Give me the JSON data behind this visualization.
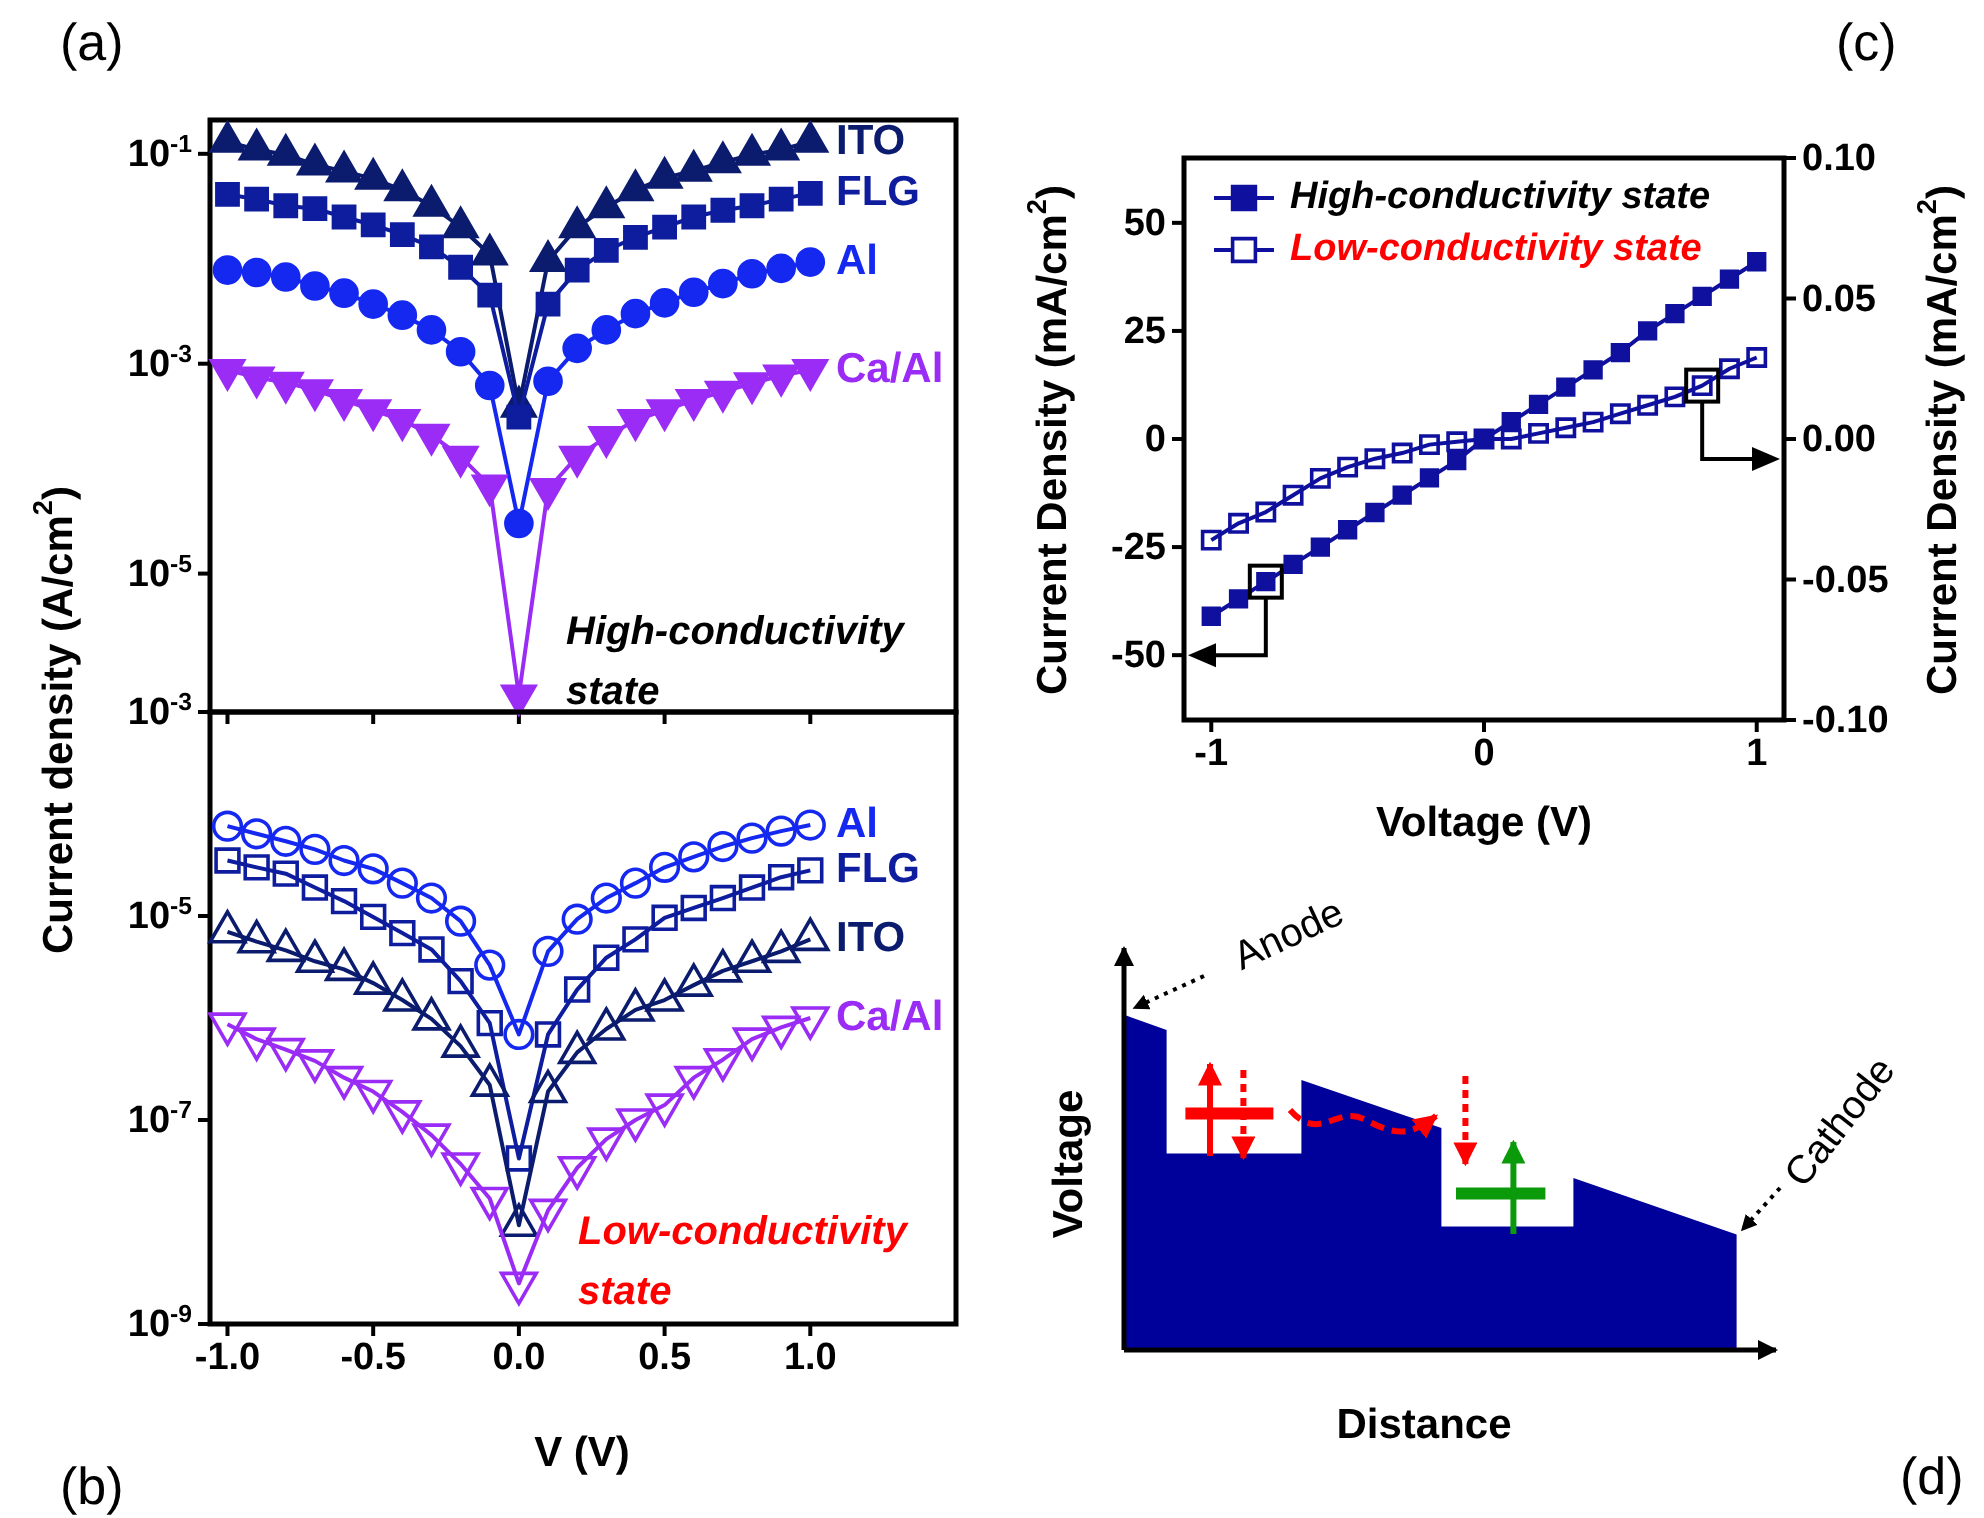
{
  "chart_data": [
    {
      "type": "line",
      "log": "y",
      "ylabel": "Current density (A/cm$^{2}$)",
      "annotations": [
        "(a)",
        "High-conductivity state"
      ],
      "tick_labels": "y",
      "x": [
        -1.0,
        -0.9,
        -0.8,
        -0.7,
        -0.6,
        -0.5,
        -0.4,
        -0.3,
        -0.2,
        -0.1,
        0.0,
        0.1,
        0.2,
        0.3,
        0.4,
        0.5,
        0.6,
        0.7,
        0.8,
        0.9,
        1.0
      ],
      "xlim": [
        -1.06,
        1.5
      ],
      "xticks": [
        -1,
        -0.5,
        0,
        0.5,
        1
      ],
      "ylim": [
        4.8e-07,
        0.21
      ],
      "yticks": [
        {
          "value": 0.1,
          "label": "10$^{-1}$"
        },
        {
          "value": 0.001,
          "label": "10$^{-3}$"
        },
        {
          "value": 1e-05,
          "label": "10$^{-5}$"
        }
      ],
      "series": [
        {
          "name": "ITO",
          "color": "#0b1b6e",
          "marker": "triangle",
          "values": [
            0.13,
            0.11,
            0.098,
            0.079,
            0.068,
            0.058,
            0.045,
            0.032,
            0.02,
            0.011,
            0.00039,
            0.0095,
            0.02,
            0.031,
            0.045,
            0.059,
            0.069,
            0.083,
            0.098,
            0.11,
            0.13
          ]
        },
        {
          "name": "FLG",
          "color": "#0e1c9e",
          "marker": "square",
          "values": [
            0.041,
            0.037,
            0.032,
            0.03,
            0.025,
            0.021,
            0.017,
            0.013,
            0.0083,
            0.0045,
            0.00031,
            0.0037,
            0.0078,
            0.012,
            0.016,
            0.02,
            0.025,
            0.029,
            0.032,
            0.037,
            0.042
          ]
        },
        {
          "name": "Al",
          "color": "#1428f0",
          "marker": "circle",
          "values": [
            0.0078,
            0.0074,
            0.0067,
            0.0055,
            0.0047,
            0.0037,
            0.0029,
            0.0021,
            0.0013,
            0.00062,
            3e-05,
            0.00068,
            0.0014,
            0.0021,
            0.003,
            0.0038,
            0.0048,
            0.0058,
            0.0072,
            0.0081,
            0.0093
          ]
        },
        {
          "name": "Ca/Al",
          "color": "#9a2cf5",
          "marker": "triangle-down",
          "values": [
            0.00087,
            0.00074,
            0.00066,
            0.00056,
            0.00045,
            0.00036,
            0.00029,
            0.00021,
            0.00013,
            6.9e-05,
            6.9e-07,
            6.4e-05,
            0.00013,
            0.0002,
            0.00029,
            0.00036,
            0.00045,
            0.00054,
            0.00065,
            0.00077,
            0.00087
          ]
        }
      ]
    },
    {
      "type": "line",
      "log": "y",
      "xlabel": "V (V)",
      "annotations": [
        "(b)",
        "Low-conductivity state"
      ],
      "x": [
        -1.0,
        -0.9,
        -0.8,
        -0.7,
        -0.6,
        -0.5,
        -0.4,
        -0.3,
        -0.2,
        -0.1,
        0.0,
        0.1,
        0.2,
        0.3,
        0.4,
        0.5,
        0.6,
        0.7,
        0.8,
        0.9,
        1.0
      ],
      "xlim": [
        -1.06,
        1.5
      ],
      "xticks": [
        {
          "value": -1,
          "label": "-1.0"
        },
        -0.5,
        {
          "value": 0,
          "label": "0.0"
        },
        0.5,
        {
          "value": 1,
          "label": "1.0"
        }
      ],
      "ylim": [
        1e-09,
        0.001
      ],
      "yticks": [
        {
          "value": 0.001,
          "label": "10$^{-3}$"
        },
        {
          "value": 1e-05,
          "label": "10$^{-5}$"
        },
        {
          "value": 1e-07,
          "label": "10$^{-7}$"
        },
        {
          "value": 1e-09,
          "label": "10$^{-9}$"
        }
      ],
      "series": [
        {
          "name": "Al",
          "color": "#1428f0",
          "marker": "circle",
          "values": [
            7.6e-05,
            6.4e-05,
            5.4e-05,
            4.5e-05,
            3.5e-05,
            2.9e-05,
            2.1e-05,
            1.5e-05,
            8.9e-06,
            3.3e-06,
            6.9e-07,
            4.5e-06,
            9.3e-06,
            1.5e-05,
            2.1e-05,
            3e-05,
            3.8e-05,
            4.8e-05,
            5.8e-05,
            6.8e-05,
            7.8e-05
          ]
        },
        {
          "name": "FLG",
          "color": "#0e1c9e",
          "marker": "square",
          "values": [
            3.5e-05,
            3e-05,
            2.6e-05,
            1.9e-05,
            1.4e-05,
            9.8e-06,
            6.8e-06,
            4.7e-06,
            2.3e-06,
            8.9e-07,
            4.2e-08,
            6.9e-07,
            1.9e-06,
            3.9e-06,
            5.9e-06,
            9.6e-06,
            1.2e-05,
            1.5e-05,
            1.9e-05,
            2.4e-05,
            2.8e-05
          ]
        },
        {
          "name": "ITO",
          "color": "#0b1b6e",
          "marker": "triangle",
          "values": [
            7e-06,
            5.6e-06,
            4.6e-06,
            3.6e-06,
            3e-06,
            2.2e-06,
            1.5e-06,
            9.8e-07,
            5.3e-07,
            2.2e-07,
            9.3e-09,
            1.9e-07,
            4.6e-07,
            7.8e-07,
            1.2e-06,
            1.5e-06,
            2.1e-06,
            2.9e-06,
            3.6e-06,
            4.5e-06,
            5.9e-06
          ]
        },
        {
          "name": "Ca/Al",
          "color": "#9a2cf5",
          "marker": "triangle-down",
          "values": [
            8.7e-07,
            6.2e-07,
            4.9e-07,
            3.8e-07,
            2.6e-07,
            1.9e-07,
            1.2e-07,
            7.1e-08,
            3.7e-08,
            1.7e-08,
            2.5e-09,
            1.3e-08,
            3.4e-08,
            6.5e-08,
            1e-07,
            1.4e-07,
            2.6e-07,
            3.9e-07,
            6.2e-07,
            8.1e-07,
            1e-06
          ]
        }
      ]
    },
    {
      "type": "line",
      "xlabel": "Voltage (V)",
      "ylabel": "Current Density (mA/cm$^{2}$)",
      "y2label": "Current Density (mA/cm$^{2}$)",
      "annotations": [
        "(c)"
      ],
      "legend": "top left",
      "x": [
        -1.0,
        -0.9,
        -0.8,
        -0.7,
        -0.6,
        -0.5,
        -0.4,
        -0.3,
        -0.2,
        -0.1,
        0.0,
        0.1,
        0.2,
        0.3,
        0.4,
        0.5,
        0.6,
        0.7,
        0.8,
        0.9,
        1.0
      ],
      "xlim": [
        -1.1,
        1.1
      ],
      "xticks": [
        -1,
        0,
        1
      ],
      "ylim": [
        -65,
        65
      ],
      "yticks": [
        -50,
        -25,
        0,
        25,
        50
      ],
      "y2lim": [
        -0.1,
        0.1
      ],
      "y2ticks": [
        {
          "value": -0.1,
          "label": "-0.10"
        },
        -0.05,
        {
          "value": 0,
          "label": "0.00"
        },
        0.05,
        {
          "value": 0.1,
          "label": "0.10"
        }
      ],
      "series": [
        {
          "name": "High-conductivity state",
          "color": "#10109e",
          "marker": "square",
          "values": [
            -41,
            -37,
            -33,
            -29,
            -25,
            -21,
            -17,
            -13,
            -9,
            -5,
            0,
            4,
            8,
            12,
            16,
            20,
            25,
            29,
            33,
            37,
            41
          ]
        },
        {
          "name": "Low-conductivity state",
          "color": "#10109e",
          "marker": "square",
          "axis": "y2",
          "values": [
            -0.036,
            -0.03,
            -0.026,
            -0.02,
            -0.014,
            -0.01,
            -0.007,
            -0.005,
            -0.002,
            -0.001,
            0,
            0.0,
            0.002,
            0.004,
            0.006,
            0.009,
            0.012,
            0.015,
            0.019,
            0.025,
            0.029
          ]
        }
      ]
    },
    {
      "type": "other",
      "xlabel": "Distance",
      "ylabel": "Voltage",
      "annotations": [
        "Anode",
        "Cathode",
        "(d)"
      ]
    }
  ]
}
